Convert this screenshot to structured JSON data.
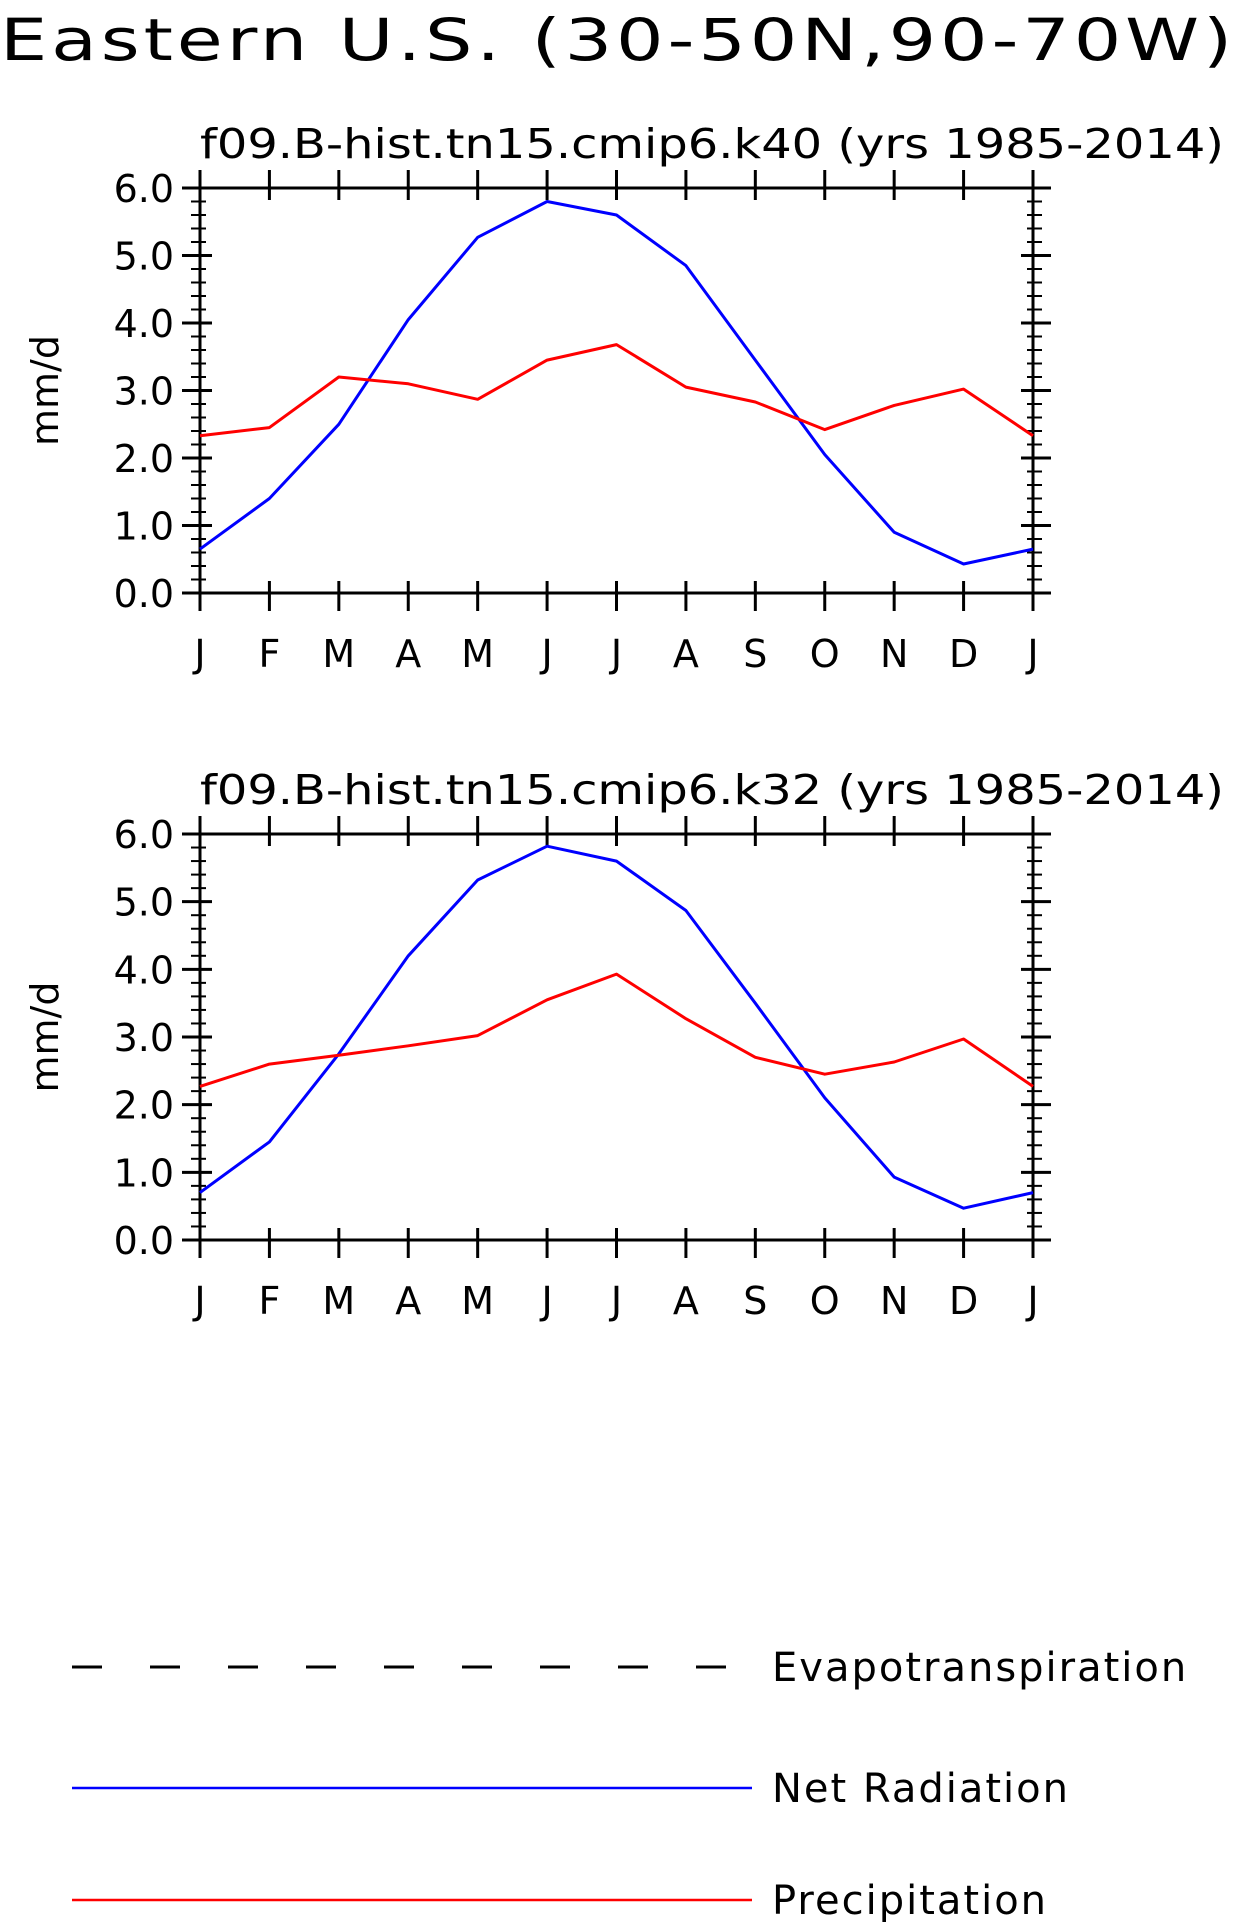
{
  "figure": {
    "title": "Eastern U.S. (30-50N,90-70W)"
  },
  "colors": {
    "net_radiation": "#0000ff",
    "precipitation": "#ff0000",
    "evapotranspiration": "#000000"
  },
  "legend": {
    "placement": "bottom",
    "items": [
      {
        "label": "Evapotranspiration",
        "style": "dashed",
        "color": "#000000"
      },
      {
        "label": "Net Radiation",
        "style": "solid",
        "color": "#0000ff"
      },
      {
        "label": "Precipitation",
        "style": "solid",
        "color": "#ff0000"
      }
    ]
  },
  "chart_data": [
    {
      "type": "line",
      "title": "f09.B-hist.tn15.cmip6.k40 (yrs 1985-2014)",
      "xlabel": "",
      "ylabel": "mm/d",
      "ylim": [
        0,
        6
      ],
      "yticks": [
        "0.0",
        "1.0",
        "2.0",
        "3.0",
        "4.0",
        "5.0",
        "6.0"
      ],
      "categories": [
        "J",
        "F",
        "M",
        "A",
        "M",
        "J",
        "J",
        "A",
        "S",
        "O",
        "N",
        "D",
        "J"
      ],
      "grid": false,
      "series": [
        {
          "name": "Net Radiation",
          "color": "#0000ff",
          "values": [
            0.65,
            1.4,
            2.5,
            4.05,
            5.27,
            5.8,
            5.6,
            4.85,
            3.45,
            2.05,
            0.9,
            0.43,
            0.65
          ]
        },
        {
          "name": "Precipitation",
          "color": "#ff0000",
          "values": [
            2.33,
            2.45,
            3.2,
            3.1,
            2.87,
            3.45,
            3.68,
            3.05,
            2.83,
            2.42,
            2.78,
            3.02,
            2.33
          ]
        }
      ]
    },
    {
      "type": "line",
      "title": "f09.B-hist.tn15.cmip6.k32 (yrs 1985-2014)",
      "xlabel": "",
      "ylabel": "mm/d",
      "ylim": [
        0,
        6
      ],
      "yticks": [
        "0.0",
        "1.0",
        "2.0",
        "3.0",
        "4.0",
        "5.0",
        "6.0"
      ],
      "categories": [
        "J",
        "F",
        "M",
        "A",
        "M",
        "J",
        "J",
        "A",
        "S",
        "O",
        "N",
        "D",
        "J"
      ],
      "grid": false,
      "series": [
        {
          "name": "Net Radiation",
          "color": "#0000ff",
          "values": [
            0.7,
            1.45,
            2.75,
            4.2,
            5.32,
            5.82,
            5.6,
            4.87,
            3.5,
            2.1,
            0.93,
            0.47,
            0.7
          ]
        },
        {
          "name": "Precipitation",
          "color": "#ff0000",
          "values": [
            2.27,
            2.6,
            2.73,
            2.87,
            3.02,
            3.55,
            3.93,
            3.27,
            2.7,
            2.45,
            2.63,
            2.97,
            2.27
          ]
        }
      ]
    }
  ]
}
